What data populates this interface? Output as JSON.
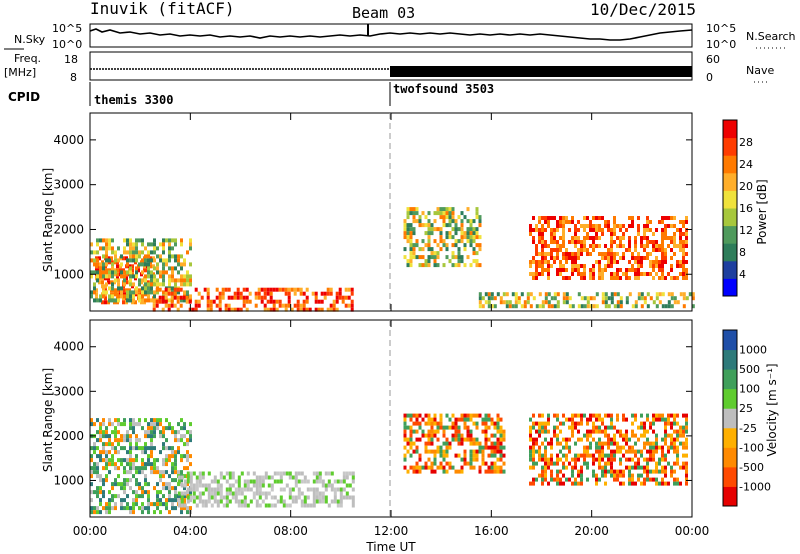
{
  "header": {
    "station": "Inuvik (fitACF)",
    "beam": "Beam 03",
    "date": "10/Dec/2015"
  },
  "top_panels": {
    "nsky": {
      "label": "N.Sky",
      "ticks": [
        "10^5",
        "10^0"
      ],
      "right_label": "N.Search",
      "right_ticks": [
        "10^5",
        "10^0"
      ]
    },
    "freq": {
      "label_line1": "Freq.",
      "label_line2": "[MHz]",
      "ticks": [
        "18",
        "8"
      ],
      "right_label": "Nave",
      "right_ticks": [
        "60",
        "0"
      ]
    },
    "cpid": {
      "label": "CPID",
      "programs": [
        {
          "name": "themis 3300",
          "start_hour": 0
        },
        {
          "name": "twofsound 3503",
          "start_hour": 12
        }
      ]
    }
  },
  "chart_data": [
    {
      "type": "heatmap",
      "panel": "power",
      "ylabel": "Slant Range [km]",
      "yticks": [
        1000,
        2000,
        3000,
        4000
      ],
      "ylim": [
        180,
        4600
      ],
      "x_range_hours": [
        0,
        24
      ],
      "colorbar": {
        "label": "Power [dB]",
        "ticks": [
          "28",
          "24",
          "20",
          "16",
          "12",
          "8",
          "4"
        ],
        "colors": [
          "#0000ff",
          "#1e3f9f",
          "#2e7d5a",
          "#4f9a5c",
          "#a7c73c",
          "#f0e23c",
          "#ffae2a",
          "#ff7a00",
          "#ff3c00",
          "#ee0000"
        ]
      },
      "regions": [
        {
          "hours": [
            0.2,
            2.5
          ],
          "range_km": [
            350,
            1400
          ],
          "level": "high"
        },
        {
          "hours": [
            0.0,
            4.0
          ],
          "range_km": [
            400,
            1800
          ],
          "level": "mid"
        },
        {
          "hours": [
            2.5,
            10.5
          ],
          "range_km": [
            250,
            700
          ],
          "level": "high"
        },
        {
          "hours": [
            12.5,
            15.5
          ],
          "range_km": [
            1200,
            2500
          ],
          "level": "mid"
        },
        {
          "hours": [
            15.5,
            24.0
          ],
          "range_km": [
            250,
            600
          ],
          "level": "mid"
        },
        {
          "hours": [
            17.5,
            23.8
          ],
          "range_km": [
            900,
            2300
          ],
          "level": "high"
        }
      ]
    },
    {
      "type": "heatmap",
      "panel": "velocity",
      "ylabel": "Slant Range [km]",
      "yticks": [
        1000,
        2000,
        3000,
        4000
      ],
      "ylim": [
        180,
        4600
      ],
      "x_range_hours": [
        0,
        24
      ],
      "xlabel": "Time UT",
      "xticks": [
        "00:00",
        "04:00",
        "08:00",
        "12:00",
        "16:00",
        "20:00",
        "00:00"
      ],
      "colorbar": {
        "label": "Velocity [m s⁻¹]",
        "ticks": [
          "1000",
          "500",
          "100",
          "25",
          "-25",
          "-100",
          "-500",
          "-1000"
        ],
        "colors": [
          "#e60000",
          "#ff4a00",
          "#ff8a00",
          "#ffb000",
          "#bebebe",
          "#5fcc2e",
          "#3f9f5a",
          "#2e7a7a",
          "#1f4fa8"
        ]
      },
      "regions": [
        {
          "hours": [
            0.0,
            4.0
          ],
          "range_km": [
            300,
            2400
          ],
          "level": "positive"
        },
        {
          "hours": [
            3.5,
            10.5
          ],
          "range_km": [
            400,
            1200
          ],
          "level": "ground"
        },
        {
          "hours": [
            12.5,
            16.5
          ],
          "range_km": [
            1200,
            2500
          ],
          "level": "negative"
        },
        {
          "hours": [
            17.5,
            23.8
          ],
          "range_km": [
            900,
            2500
          ],
          "level": "negative"
        }
      ]
    }
  ]
}
